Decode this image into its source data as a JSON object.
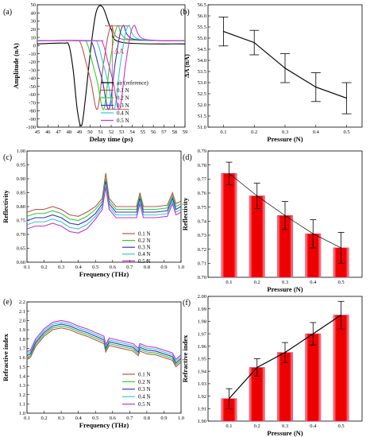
{
  "chart_data": [
    {
      "id": "a",
      "type": "line",
      "panel_label": "(a)",
      "xlabel": "Delay time (ps)",
      "ylabel": "Amplitude (nA)",
      "xlim": [
        45,
        59
      ],
      "ylim": [
        -100,
        50
      ],
      "xticks": [
        45,
        46,
        47,
        48,
        49,
        50,
        51,
        52,
        53,
        54,
        55,
        56,
        57,
        58,
        59
      ],
      "yticks": [
        -100,
        -90,
        -80,
        -70,
        -60,
        -50,
        -40,
        -30,
        -20,
        -10,
        0,
        10,
        20,
        30,
        40,
        50
      ],
      "annotation": "ΔA",
      "legend_position": "lower-right",
      "series": [
        {
          "name": "air (reference)",
          "color": "#000000",
          "x": [
            45,
            47.5,
            48,
            48.4,
            48.8,
            49.2,
            49.6,
            50.1,
            50.6,
            51.2,
            52,
            53,
            59
          ],
          "y": [
            2,
            3,
            0,
            -30,
            -80,
            -98,
            -60,
            0,
            42,
            47,
            20,
            4,
            2
          ]
        },
        {
          "name": "0.1 N",
          "color": "#c0504d",
          "x": [
            45,
            48.5,
            49.1,
            49.6,
            50.1,
            50.7,
            51.3,
            52,
            53,
            59
          ],
          "y": [
            6,
            6,
            3,
            -20,
            -45,
            -78,
            -20,
            24,
            8,
            6
          ]
        },
        {
          "name": "0.2 N",
          "color": "#33cc33",
          "x": [
            45,
            49.1,
            49.7,
            50.2,
            50.7,
            51.3,
            51.9,
            52.6,
            53.6,
            59
          ],
          "y": [
            6,
            6,
            3,
            -20,
            -45,
            -78,
            -20,
            24,
            8,
            6
          ]
        },
        {
          "name": "0.3 N",
          "color": "#3333cc",
          "x": [
            45,
            49.6,
            50.2,
            50.7,
            51.2,
            51.8,
            52.4,
            53.1,
            54.1,
            59
          ],
          "y": [
            6,
            6,
            3,
            -20,
            -45,
            -78,
            -20,
            24,
            8,
            6
          ]
        },
        {
          "name": "0.4 N",
          "color": "#33cccc",
          "x": [
            45,
            50.1,
            50.7,
            51.2,
            51.7,
            52.3,
            52.9,
            53.6,
            54.6,
            59
          ],
          "y": [
            6,
            6,
            3,
            -20,
            -45,
            -78,
            -20,
            24,
            8,
            6
          ]
        },
        {
          "name": "0.5 N",
          "color": "#cc33cc",
          "x": [
            45,
            50.6,
            51.2,
            51.7,
            52.2,
            52.8,
            53.4,
            54.1,
            55.1,
            59
          ],
          "y": [
            6,
            6,
            3,
            -20,
            -45,
            -78,
            -20,
            24,
            8,
            6
          ]
        }
      ]
    },
    {
      "id": "b",
      "type": "line",
      "panel_label": "(b)",
      "xlabel": "Pressure (N)",
      "ylabel": "ΔA (nA)",
      "xlim": [
        0.05,
        0.55
      ],
      "ylim": [
        51.0,
        56.5
      ],
      "xticks": [
        0.1,
        0.2,
        0.3,
        0.4,
        0.5
      ],
      "yticks": [
        51.0,
        51.5,
        52.0,
        52.5,
        53.0,
        53.5,
        54.0,
        54.5,
        55.0,
        55.5,
        56.0,
        56.5
      ],
      "x": [
        0.1,
        0.2,
        0.3,
        0.4,
        0.5
      ],
      "y": [
        55.3,
        54.8,
        53.65,
        52.8,
        52.3
      ],
      "error": [
        0.65,
        0.55,
        0.65,
        0.65,
        0.7
      ]
    },
    {
      "id": "c",
      "type": "line",
      "panel_label": "(c)",
      "xlabel": "Frequency (THz)",
      "ylabel": "Reflectivity",
      "xlim": [
        0.1,
        1.0
      ],
      "ylim": [
        0.6,
        1.0
      ],
      "xticks": [
        0.1,
        0.2,
        0.3,
        0.4,
        0.5,
        0.6,
        0.7,
        0.8,
        0.9,
        1.0
      ],
      "yticks": [
        0.6,
        0.65,
        0.7,
        0.75,
        0.8,
        0.85,
        0.9,
        0.95,
        1.0
      ],
      "legend_position": "lower-right",
      "series": [
        {
          "name": "0.1 N",
          "color": "#c0504d",
          "x": [
            0.1,
            0.15,
            0.2,
            0.25,
            0.3,
            0.35,
            0.4,
            0.45,
            0.5,
            0.54,
            0.56,
            0.58,
            0.62,
            0.7,
            0.74,
            0.76,
            0.78,
            0.85,
            0.92,
            0.95,
            0.97,
            1.0
          ],
          "y": [
            0.78,
            0.79,
            0.79,
            0.8,
            0.79,
            0.77,
            0.765,
            0.78,
            0.8,
            0.83,
            0.92,
            0.83,
            0.8,
            0.8,
            0.8,
            0.85,
            0.8,
            0.8,
            0.805,
            0.85,
            0.81,
            0.82
          ]
        },
        {
          "name": "0.2 N",
          "color": "#33cc33",
          "x": [
            0.1,
            0.15,
            0.2,
            0.25,
            0.3,
            0.35,
            0.4,
            0.45,
            0.5,
            0.54,
            0.56,
            0.58,
            0.62,
            0.7,
            0.74,
            0.76,
            0.78,
            0.85,
            0.92,
            0.95,
            0.97,
            1.0
          ],
          "y": [
            0.765,
            0.775,
            0.775,
            0.785,
            0.775,
            0.755,
            0.75,
            0.765,
            0.79,
            0.82,
            0.9,
            0.82,
            0.79,
            0.79,
            0.79,
            0.84,
            0.79,
            0.79,
            0.795,
            0.84,
            0.8,
            0.81
          ]
        },
        {
          "name": "0.3 N",
          "color": "#3333cc",
          "x": [
            0.1,
            0.15,
            0.2,
            0.25,
            0.3,
            0.35,
            0.4,
            0.45,
            0.5,
            0.54,
            0.56,
            0.58,
            0.62,
            0.7,
            0.74,
            0.76,
            0.78,
            0.85,
            0.92,
            0.95,
            0.97,
            1.0
          ],
          "y": [
            0.75,
            0.76,
            0.76,
            0.77,
            0.76,
            0.74,
            0.735,
            0.75,
            0.775,
            0.81,
            0.89,
            0.81,
            0.78,
            0.78,
            0.78,
            0.83,
            0.78,
            0.78,
            0.785,
            0.83,
            0.79,
            0.8
          ]
        },
        {
          "name": "0.4 N",
          "color": "#33cccc",
          "x": [
            0.1,
            0.15,
            0.2,
            0.25,
            0.3,
            0.35,
            0.4,
            0.45,
            0.5,
            0.54,
            0.56,
            0.58,
            0.62,
            0.7,
            0.74,
            0.76,
            0.78,
            0.85,
            0.92,
            0.95,
            0.97,
            1.0
          ],
          "y": [
            0.735,
            0.745,
            0.745,
            0.755,
            0.745,
            0.725,
            0.72,
            0.735,
            0.765,
            0.8,
            0.88,
            0.8,
            0.77,
            0.77,
            0.77,
            0.82,
            0.77,
            0.77,
            0.775,
            0.82,
            0.78,
            0.79
          ]
        },
        {
          "name": "0.5 N",
          "color": "#cc33cc",
          "x": [
            0.1,
            0.15,
            0.2,
            0.25,
            0.3,
            0.35,
            0.4,
            0.45,
            0.5,
            0.54,
            0.56,
            0.58,
            0.62,
            0.7,
            0.74,
            0.76,
            0.78,
            0.85,
            0.92,
            0.95,
            0.97,
            1.0
          ],
          "y": [
            0.72,
            0.73,
            0.73,
            0.74,
            0.73,
            0.71,
            0.705,
            0.72,
            0.755,
            0.79,
            0.87,
            0.79,
            0.76,
            0.76,
            0.76,
            0.81,
            0.76,
            0.76,
            0.765,
            0.81,
            0.77,
            0.78
          ]
        }
      ]
    },
    {
      "id": "d",
      "type": "bar",
      "panel_label": "(d)",
      "xlabel": "Pressure (N)",
      "ylabel": "Reflectivity",
      "ylim": [
        0.7,
        0.79
      ],
      "yticks": [
        0.7,
        0.71,
        0.72,
        0.73,
        0.74,
        0.75,
        0.76,
        0.77,
        0.78,
        0.79
      ],
      "categories": [
        "0.1",
        "0.2",
        "0.3",
        "0.4",
        "0.5"
      ],
      "values": [
        0.774,
        0.758,
        0.744,
        0.731,
        0.721
      ],
      "error": [
        0.008,
        0.009,
        0.01,
        0.01,
        0.011
      ],
      "trend_line": true
    },
    {
      "id": "e",
      "type": "line",
      "panel_label": "(e)",
      "xlabel": "Frequency (THz)",
      "ylabel": "Refractive index",
      "xlim": [
        0.1,
        1.0
      ],
      "ylim": [
        1.0,
        2.2
      ],
      "xticks": [
        0.1,
        0.2,
        0.3,
        0.4,
        0.5,
        0.6,
        0.7,
        0.8,
        0.9,
        1.0
      ],
      "yticks": [
        1.0,
        1.1,
        1.2,
        1.3,
        1.4,
        1.5,
        1.6,
        1.7,
        1.8,
        1.9,
        2.0,
        2.1,
        2.2
      ],
      "legend_position": "lower-left",
      "series": [
        {
          "name": "0.1 N",
          "color": "#c0504d",
          "x": [
            0.1,
            0.12,
            0.15,
            0.2,
            0.25,
            0.3,
            0.35,
            0.4,
            0.45,
            0.5,
            0.55,
            0.56,
            0.58,
            0.65,
            0.72,
            0.75,
            0.76,
            0.8,
            0.85,
            0.9,
            0.95,
            0.97,
            1.0
          ],
          "y": [
            1.58,
            1.6,
            1.72,
            1.83,
            1.9,
            1.92,
            1.9,
            1.86,
            1.83,
            1.79,
            1.75,
            1.66,
            1.73,
            1.7,
            1.67,
            1.62,
            1.67,
            1.64,
            1.63,
            1.6,
            1.57,
            1.5,
            1.55
          ]
        },
        {
          "name": "0.2 N",
          "color": "#33cc33",
          "x": [
            0.1,
            0.12,
            0.15,
            0.2,
            0.25,
            0.3,
            0.35,
            0.4,
            0.45,
            0.5,
            0.55,
            0.56,
            0.58,
            0.65,
            0.72,
            0.75,
            0.76,
            0.8,
            0.85,
            0.9,
            0.95,
            0.97,
            1.0
          ],
          "y": [
            1.6,
            1.62,
            1.74,
            1.85,
            1.92,
            1.94,
            1.92,
            1.88,
            1.85,
            1.81,
            1.77,
            1.68,
            1.75,
            1.72,
            1.69,
            1.64,
            1.69,
            1.66,
            1.65,
            1.62,
            1.59,
            1.52,
            1.57
          ]
        },
        {
          "name": "0.3 N",
          "color": "#3333cc",
          "x": [
            0.1,
            0.12,
            0.15,
            0.2,
            0.25,
            0.3,
            0.35,
            0.4,
            0.45,
            0.5,
            0.55,
            0.56,
            0.58,
            0.65,
            0.72,
            0.75,
            0.76,
            0.8,
            0.85,
            0.9,
            0.95,
            0.97,
            1.0
          ],
          "y": [
            1.62,
            1.64,
            1.76,
            1.87,
            1.94,
            1.96,
            1.94,
            1.9,
            1.87,
            1.83,
            1.79,
            1.7,
            1.77,
            1.74,
            1.71,
            1.66,
            1.71,
            1.68,
            1.67,
            1.64,
            1.61,
            1.54,
            1.59
          ]
        },
        {
          "name": "0.4 N",
          "color": "#33cccc",
          "x": [
            0.1,
            0.12,
            0.15,
            0.2,
            0.25,
            0.3,
            0.35,
            0.4,
            0.45,
            0.5,
            0.55,
            0.56,
            0.58,
            0.65,
            0.72,
            0.75,
            0.76,
            0.8,
            0.85,
            0.9,
            0.95,
            0.97,
            1.0
          ],
          "y": [
            1.64,
            1.66,
            1.78,
            1.89,
            1.96,
            1.98,
            1.96,
            1.92,
            1.89,
            1.85,
            1.81,
            1.72,
            1.79,
            1.76,
            1.73,
            1.68,
            1.73,
            1.7,
            1.69,
            1.66,
            1.63,
            1.56,
            1.61
          ]
        },
        {
          "name": "0.5 N",
          "color": "#cc33cc",
          "x": [
            0.1,
            0.12,
            0.15,
            0.2,
            0.25,
            0.3,
            0.35,
            0.4,
            0.45,
            0.5,
            0.55,
            0.56,
            0.58,
            0.65,
            0.72,
            0.75,
            0.76,
            0.8,
            0.85,
            0.9,
            0.95,
            0.97,
            1.0
          ],
          "y": [
            1.66,
            1.68,
            1.8,
            1.91,
            1.98,
            2.0,
            1.98,
            1.94,
            1.91,
            1.87,
            1.83,
            1.74,
            1.81,
            1.78,
            1.75,
            1.7,
            1.75,
            1.72,
            1.71,
            1.68,
            1.65,
            1.58,
            1.63
          ]
        }
      ]
    },
    {
      "id": "f",
      "type": "bar",
      "panel_label": "(f)",
      "xlabel": "Pressure (N)",
      "ylabel": "Refractive index",
      "ylim": [
        1.9,
        2.0
      ],
      "yticks": [
        1.9,
        1.91,
        1.92,
        1.93,
        1.94,
        1.95,
        1.96,
        1.97,
        1.98,
        1.99,
        2.0
      ],
      "categories": [
        "0.1",
        "0.2",
        "0.3",
        "0.4",
        "0.5"
      ],
      "values": [
        1.918,
        1.943,
        1.955,
        1.97,
        1.985
      ],
      "error": [
        0.008,
        0.007,
        0.008,
        0.009,
        0.011
      ],
      "trend_line": true
    }
  ]
}
